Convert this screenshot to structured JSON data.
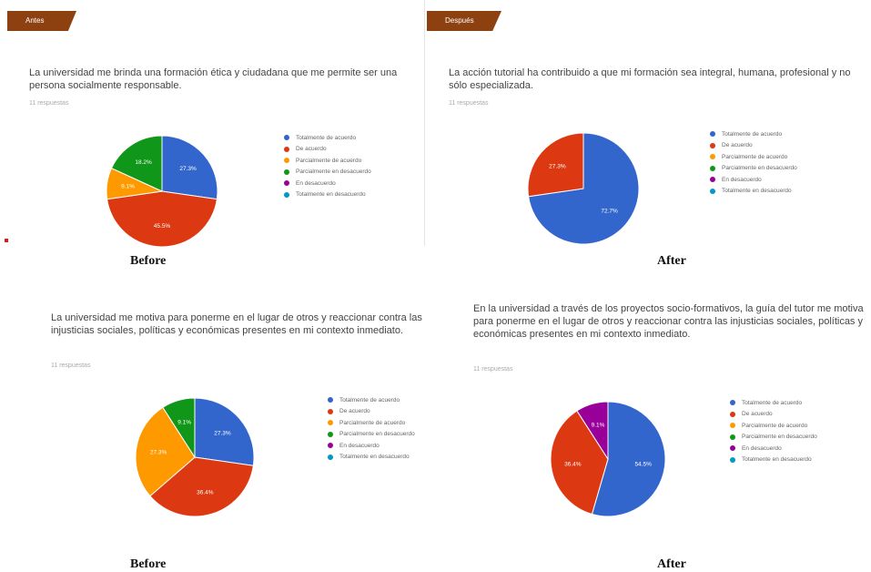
{
  "legend_labels": [
    "Totalmente de acuerdo",
    "De acuerdo",
    "Parcialmente de acuerdo",
    "Parcialmente en desacuerdo",
    "En desacuerdo",
    "Totalmente en desacuerdo"
  ],
  "colors": [
    "#3366cc",
    "#dc3912",
    "#ff9900",
    "#109618",
    "#990099",
    "#0099c6"
  ],
  "captions": {
    "before": "Before",
    "after": "After"
  },
  "chart_data": [
    {
      "type": "pie",
      "tag": "Antes",
      "title": "La universidad me brinda una formación ética y ciudadana que me permite ser una persona socialmente responsable.",
      "responses": "11 respuestas",
      "slices": [
        {
          "category": "Totalmente de acuerdo",
          "value": 27.3,
          "label": "27.3%"
        },
        {
          "category": "De acuerdo",
          "value": 45.5,
          "label": "45.5%"
        },
        {
          "category": "Parcialmente de acuerdo",
          "value": 9.1,
          "label": "9.1%"
        },
        {
          "category": "Parcialmente en desacuerdo",
          "value": 18.2,
          "label": "18.2%"
        },
        {
          "category": "En desacuerdo",
          "value": 0,
          "label": ""
        },
        {
          "category": "Totalmente en desacuerdo",
          "value": 0,
          "label": ""
        }
      ]
    },
    {
      "type": "pie",
      "tag": "Después",
      "title": "La acción tutorial ha contribuido a que mi formación sea integral, humana, profesional y no sólo especializada.",
      "responses": "11 respuestas",
      "slices": [
        {
          "category": "Totalmente de acuerdo",
          "value": 72.7,
          "label": "72.7%"
        },
        {
          "category": "De acuerdo",
          "value": 27.3,
          "label": "27.3%"
        },
        {
          "category": "Parcialmente de acuerdo",
          "value": 0,
          "label": ""
        },
        {
          "category": "Parcialmente en desacuerdo",
          "value": 0,
          "label": ""
        },
        {
          "category": "En desacuerdo",
          "value": 0,
          "label": ""
        },
        {
          "category": "Totalmente en desacuerdo",
          "value": 0,
          "label": ""
        }
      ]
    },
    {
      "type": "pie",
      "title": "La universidad me motiva para ponerme en el lugar de otros y reaccionar contra las injusticias sociales, políticas y económicas presentes en mi contexto inmediato.",
      "responses": "11 respuestas",
      "slices": [
        {
          "category": "Totalmente de acuerdo",
          "value": 27.3,
          "label": "27.3%"
        },
        {
          "category": "De acuerdo",
          "value": 36.4,
          "label": "36.4%"
        },
        {
          "category": "Parcialmente de acuerdo",
          "value": 27.3,
          "label": "27.3%"
        },
        {
          "category": "Parcialmente en desacuerdo",
          "value": 9.1,
          "label": "9.1%"
        },
        {
          "category": "En desacuerdo",
          "value": 0,
          "label": ""
        },
        {
          "category": "Totalmente en desacuerdo",
          "value": 0,
          "label": ""
        }
      ]
    },
    {
      "type": "pie",
      "title": "En la universidad a través de los proyectos socio-formativos, la guía del tutor me motiva para ponerme en el lugar de otros y reaccionar contra las injusticias sociales, políticas y económicas presentes en mi contexto inmediato.",
      "responses": "11 respuestas",
      "slices": [
        {
          "category": "Totalmente de acuerdo",
          "value": 54.5,
          "label": "54.5%"
        },
        {
          "category": "De acuerdo",
          "value": 36.4,
          "label": "36.4%"
        },
        {
          "category": "Parcialmente de acuerdo",
          "value": 0,
          "label": ""
        },
        {
          "category": "Parcialmente en desacuerdo",
          "value": 0,
          "label": ""
        },
        {
          "category": "En desacuerdo",
          "value": 9.1,
          "label": "9.1%"
        },
        {
          "category": "Totalmente en desacuerdo",
          "value": 0,
          "label": ""
        }
      ]
    }
  ]
}
